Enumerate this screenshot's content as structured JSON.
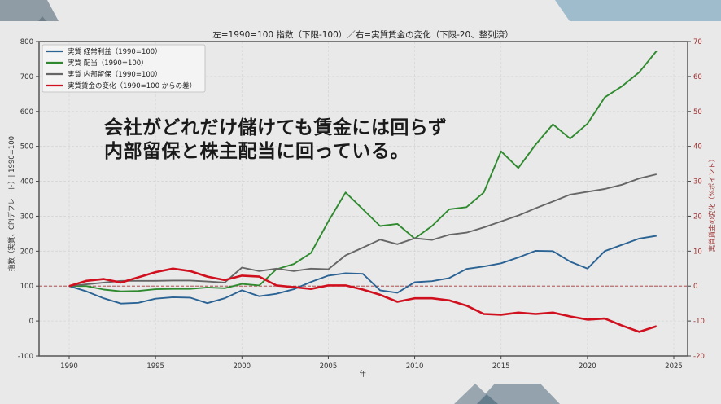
{
  "overlay": {
    "line1": "会社がどれだけ儲けても賃金には回らず",
    "line2": "内部留保と株主配当に回っている。"
  },
  "chart_data": {
    "type": "line",
    "title": "左=1990=100 指数（下限-100）／右=実質賃金の変化（下限-20、整列済）",
    "xlabel": "年",
    "ylabel": "指数（実質、CPIデフレート）| 1990=100",
    "ylabel_right": "実質賃金の変化（%ポイント）",
    "xlim": [
      1988.5,
      2025.5
    ],
    "ylim": [
      -100,
      800
    ],
    "ylim_right": [
      -20,
      70
    ],
    "xticks": [
      1990,
      1995,
      2000,
      2005,
      2010,
      2015,
      2020,
      2025
    ],
    "yticks": [
      -100,
      0,
      100,
      200,
      300,
      400,
      500,
      600,
      700,
      800
    ],
    "yticks_right": [
      -20,
      -10,
      0,
      10,
      20,
      30,
      40,
      50,
      60,
      70
    ],
    "grid": true,
    "legend_position": "top-left",
    "reference_line": {
      "axis": "right",
      "value": 0,
      "style": "dashed",
      "color": "#a33a3a"
    },
    "x": [
      1990,
      1991,
      1992,
      1993,
      1994,
      1995,
      1996,
      1997,
      1998,
      1999,
      2000,
      2001,
      2002,
      2003,
      2004,
      2005,
      2006,
      2007,
      2008,
      2009,
      2010,
      2011,
      2012,
      2013,
      2014,
      2015,
      2016,
      2017,
      2018,
      2019,
      2020,
      2021,
      2022,
      2023,
      2024
    ],
    "series": [
      {
        "name": "実質 経常利益（1990=100）",
        "axis": "left",
        "color": "#2b6394",
        "values": [
          100,
          85,
          65,
          50,
          52,
          64,
          68,
          67,
          51,
          65,
          88,
          71,
          78,
          91,
          112,
          130,
          137,
          135,
          88,
          81,
          111,
          114,
          123,
          149,
          156,
          165,
          182,
          201,
          200,
          170,
          150,
          200,
          218,
          236,
          244
        ]
      },
      {
        "name": "実質 配当（1990=100）",
        "axis": "left",
        "color": "#2f8a2f",
        "values": [
          100,
          100,
          90,
          85,
          86,
          91,
          92,
          92,
          96,
          94,
          106,
          102,
          148,
          163,
          195,
          285,
          368,
          320,
          272,
          278,
          236,
          272,
          320,
          326,
          368,
          486,
          438,
          505,
          563,
          522,
          565,
          640,
          672,
          712,
          773
        ]
      },
      {
        "name": "実質 内部留保（1990=100）",
        "axis": "left",
        "color": "#666666",
        "values": [
          100,
          105,
          110,
          115,
          115,
          115,
          116,
          116,
          113,
          110,
          153,
          143,
          150,
          143,
          150,
          148,
          188,
          210,
          233,
          220,
          237,
          232,
          247,
          253,
          268,
          285,
          302,
          323,
          342,
          362,
          370,
          378,
          390,
          408,
          420
        ]
      },
      {
        "name": "実質賃金の変化（1990=100 からの差）",
        "axis": "right",
        "color": "#d0101e",
        "values": [
          0,
          1.5,
          2,
          1,
          2.5,
          4,
          5,
          4.3,
          2.7,
          1.7,
          3,
          2.7,
          0.2,
          -0.3,
          -0.8,
          0.2,
          0.2,
          -1,
          -2.5,
          -4.5,
          -3.5,
          -3.5,
          -4.1,
          -5.6,
          -8,
          -8.2,
          -7.6,
          -8,
          -7.6,
          -8.7,
          -9.6,
          -9.3,
          -11.3,
          -13.1,
          -11.5
        ]
      }
    ]
  }
}
